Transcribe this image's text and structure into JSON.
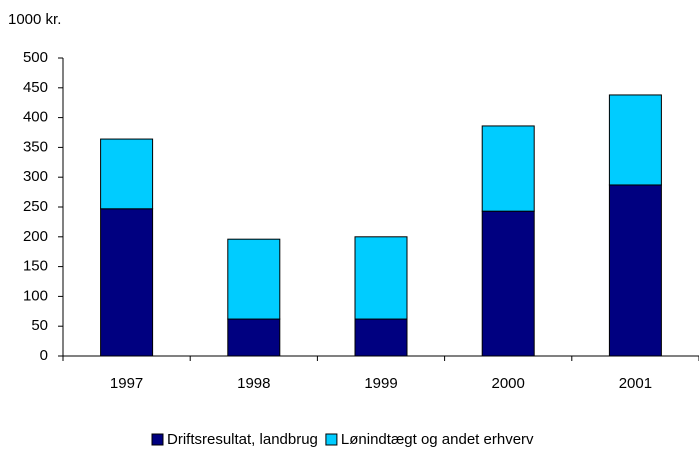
{
  "chart_data": {
    "type": "stacked_bar",
    "y_label": "1000 kr.",
    "categories": [
      "1997",
      "1998",
      "1999",
      "2000",
      "2001"
    ],
    "series": [
      {
        "name": "Driftsresultat, landbrug",
        "color": "#000080",
        "values": [
          247,
          62,
          62,
          243,
          287
        ]
      },
      {
        "name": "Lønindtægt og andet erhverv",
        "color": "#00ccff",
        "values": [
          117,
          134,
          138,
          143,
          151
        ]
      }
    ],
    "ylim": [
      0,
      500
    ],
    "yticks": [
      0,
      50,
      100,
      150,
      200,
      250,
      300,
      350,
      400,
      450,
      500
    ],
    "legend": "bottom"
  }
}
